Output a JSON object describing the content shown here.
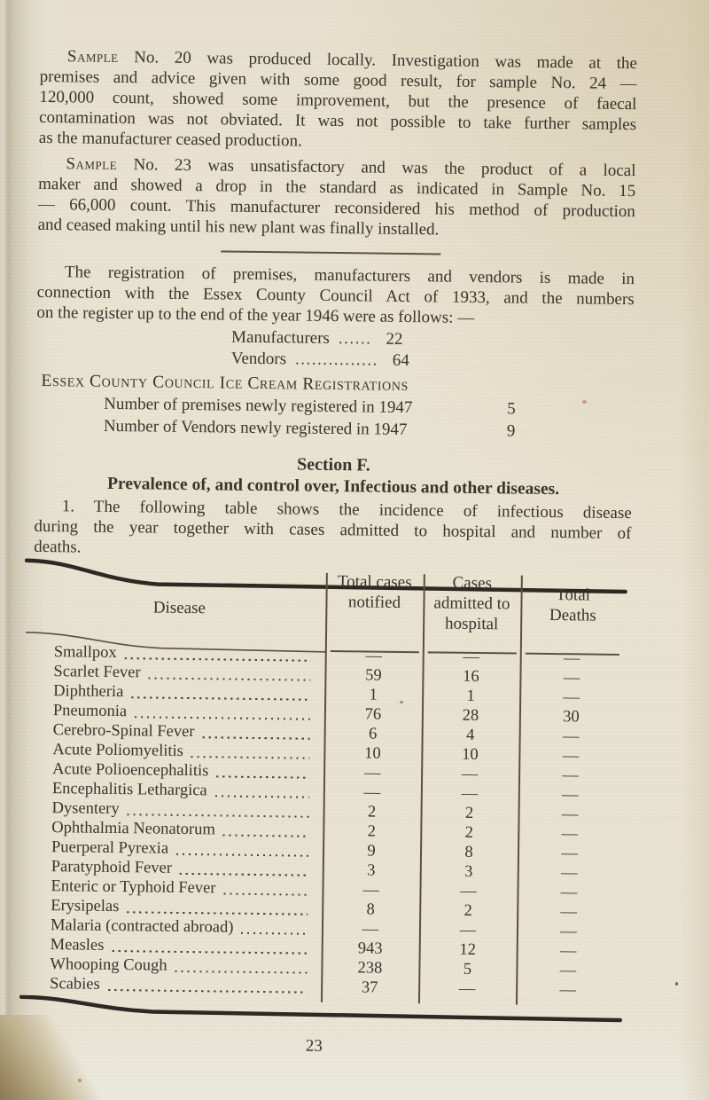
{
  "paragraphs": {
    "sample20": {
      "lead_smallcaps": true,
      "indent": true,
      "lines": [
        "Sample No. 20 was produced locally. Investigation was made at the",
        "premises and advice given with some good result, for sample No. 24 —",
        "120,000 count, showed some improvement, but the presence of faecal",
        "contamination was not obviated. It was not possible to take further samples",
        "as the manufacturer ceased production."
      ]
    },
    "sample23": {
      "lead_smallcaps": true,
      "indent": true,
      "lines": [
        "Sample No. 23 was unsatisfactory and was the product of a local",
        "maker and showed a drop in the standard as indicated in Sample No. 15",
        "— 66,000 count. This manufacturer reconsidered his method of production",
        "and ceased making until his new plant was finally installed."
      ]
    },
    "registration": {
      "lead_smallcaps": false,
      "indent": true,
      "lines": [
        "The registration of premises, manufacturers and vendors is made in",
        "connection with the Essex County Council Act of 1933, and the numbers",
        "on the register up to the end of the year 1946 were as follows: —"
      ]
    },
    "intro": {
      "lead_smallcaps": false,
      "indent": true,
      "lines": [
        "1. The following table shows the incidence of infectious disease",
        "during the year together with cases admitted to hospital and number of",
        "deaths."
      ]
    }
  },
  "register_list": [
    {
      "label": "Manufacturers",
      "dots": "......",
      "value": "22"
    },
    {
      "label": "Vendors",
      "dots": "...............",
      "value": "64"
    }
  ],
  "ice_cream": {
    "heading": "Essex County Council Ice Cream Registrations",
    "items": [
      {
        "label": "Number of premises newly registered in 1947",
        "value": "5"
      },
      {
        "label": "Number of Vendors newly registered in 1947",
        "value": "9"
      }
    ]
  },
  "section": {
    "title": "Section F.",
    "subtitle": "Prevalence of, and control over, Infectious and other diseases."
  },
  "table": {
    "headers": {
      "disease": "Disease",
      "notified": "Total cases notified",
      "admitted": "Cases admitted to hospital",
      "deaths": "Total Deaths"
    },
    "rows": [
      {
        "disease": "Smallpox",
        "notified": "—",
        "admitted": "—",
        "deaths": "—"
      },
      {
        "disease": "Scarlet Fever",
        "notified": "59",
        "admitted": "16",
        "deaths": "—"
      },
      {
        "disease": "Diphtheria",
        "notified": "1",
        "admitted": "1",
        "deaths": "—"
      },
      {
        "disease": "Pneumonia",
        "notified": "76",
        "admitted": "28",
        "deaths": "30"
      },
      {
        "disease": "Cerebro-Spinal Fever",
        "notified": "6",
        "admitted": "4",
        "deaths": "—"
      },
      {
        "disease": "Acute Poliomyelitis",
        "notified": "10",
        "admitted": "10",
        "deaths": "—"
      },
      {
        "disease": "Acute Polioencephalitis",
        "notified": "—",
        "admitted": "—",
        "deaths": "—"
      },
      {
        "disease": "Encephalitis Lethargica",
        "notified": "—",
        "admitted": "—",
        "deaths": "—"
      },
      {
        "disease": "Dysentery",
        "notified": "2",
        "admitted": "2",
        "deaths": "—"
      },
      {
        "disease": "Ophthalmia Neonatorum",
        "notified": "2",
        "admitted": "2",
        "deaths": "—"
      },
      {
        "disease": "Puerperal Pyrexia",
        "notified": "9",
        "admitted": "8",
        "deaths": "—"
      },
      {
        "disease": "Paratyphoid Fever",
        "notified": "3",
        "admitted": "3",
        "deaths": "—"
      },
      {
        "disease": "Enteric or Typhoid Fever",
        "notified": "—",
        "admitted": "—",
        "deaths": "—"
      },
      {
        "disease": "Erysipelas",
        "notified": "8",
        "admitted": "2",
        "deaths": "—"
      },
      {
        "disease": "Malaria (contracted abroad)",
        "notified": "—",
        "admitted": "—",
        "deaths": "—"
      },
      {
        "disease": "Measles",
        "notified": "943",
        "admitted": "12",
        "deaths": "—"
      },
      {
        "disease": "Whooping Cough",
        "notified": "238",
        "admitted": "5",
        "deaths": "—"
      },
      {
        "disease": "Scabies",
        "notified": "37",
        "admitted": "—",
        "deaths": "—"
      }
    ]
  },
  "page": {
    "number": "23"
  }
}
